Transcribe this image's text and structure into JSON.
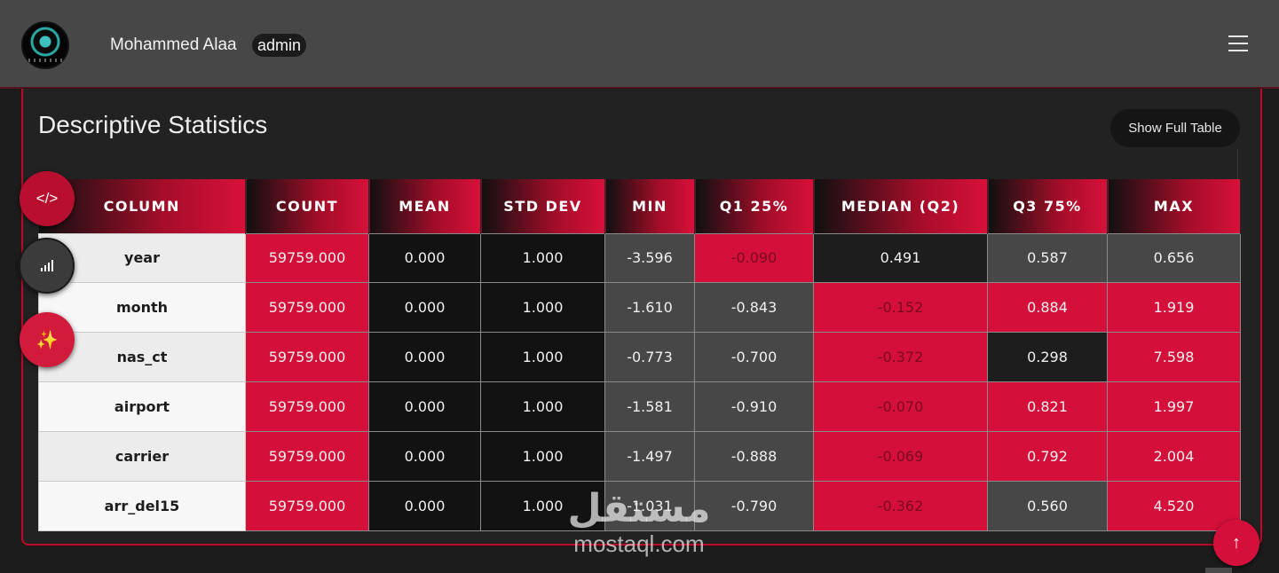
{
  "header": {
    "user_name": "Mohammed Alaa",
    "role": "admin",
    "logo_icon": "circular-logo-icon",
    "menu_icon": "hamburger-menu-icon"
  },
  "card": {
    "title": "Descriptive Statistics",
    "full_table_button": "Show Full Table"
  },
  "table": {
    "headers": [
      "COLUMN",
      "COUNT",
      "MEAN",
      "STD DEV",
      "MIN",
      "Q1 25%",
      "MEDIAN (Q2)",
      "Q3 75%",
      "MAX"
    ],
    "rows": [
      [
        "year",
        "59759.000",
        "0.000",
        "1.000",
        "-3.596",
        "-0.090",
        "0.491",
        "0.587",
        "0.656"
      ],
      [
        "month",
        "59759.000",
        "0.000",
        "1.000",
        "-1.610",
        "-0.843",
        "-0.152",
        "0.884",
        "1.919"
      ],
      [
        "nas_ct",
        "59759.000",
        "0.000",
        "1.000",
        "-0.773",
        "-0.700",
        "-0.372",
        "0.298",
        "7.598"
      ],
      [
        "airport",
        "59759.000",
        "0.000",
        "1.000",
        "-1.581",
        "-0.910",
        "-0.070",
        "0.821",
        "1.997"
      ],
      [
        "carrier",
        "59759.000",
        "0.000",
        "1.000",
        "-1.497",
        "-0.888",
        "-0.069",
        "0.792",
        "2.004"
      ],
      [
        "arr_del15",
        "59759.000",
        "0.000",
        "1.000",
        "-1.031",
        "-0.790",
        "-0.362",
        "0.560",
        "4.520"
      ]
    ]
  },
  "floating_buttons": {
    "code": "</>",
    "magic": "✨",
    "scroll_top": "↑"
  },
  "watermark": {
    "arabic": "مستقل",
    "latin": "mostaql.com"
  },
  "colors": {
    "accent_red": "#d4103a",
    "header_grey": "#474747",
    "background": "#1c1c1c"
  }
}
